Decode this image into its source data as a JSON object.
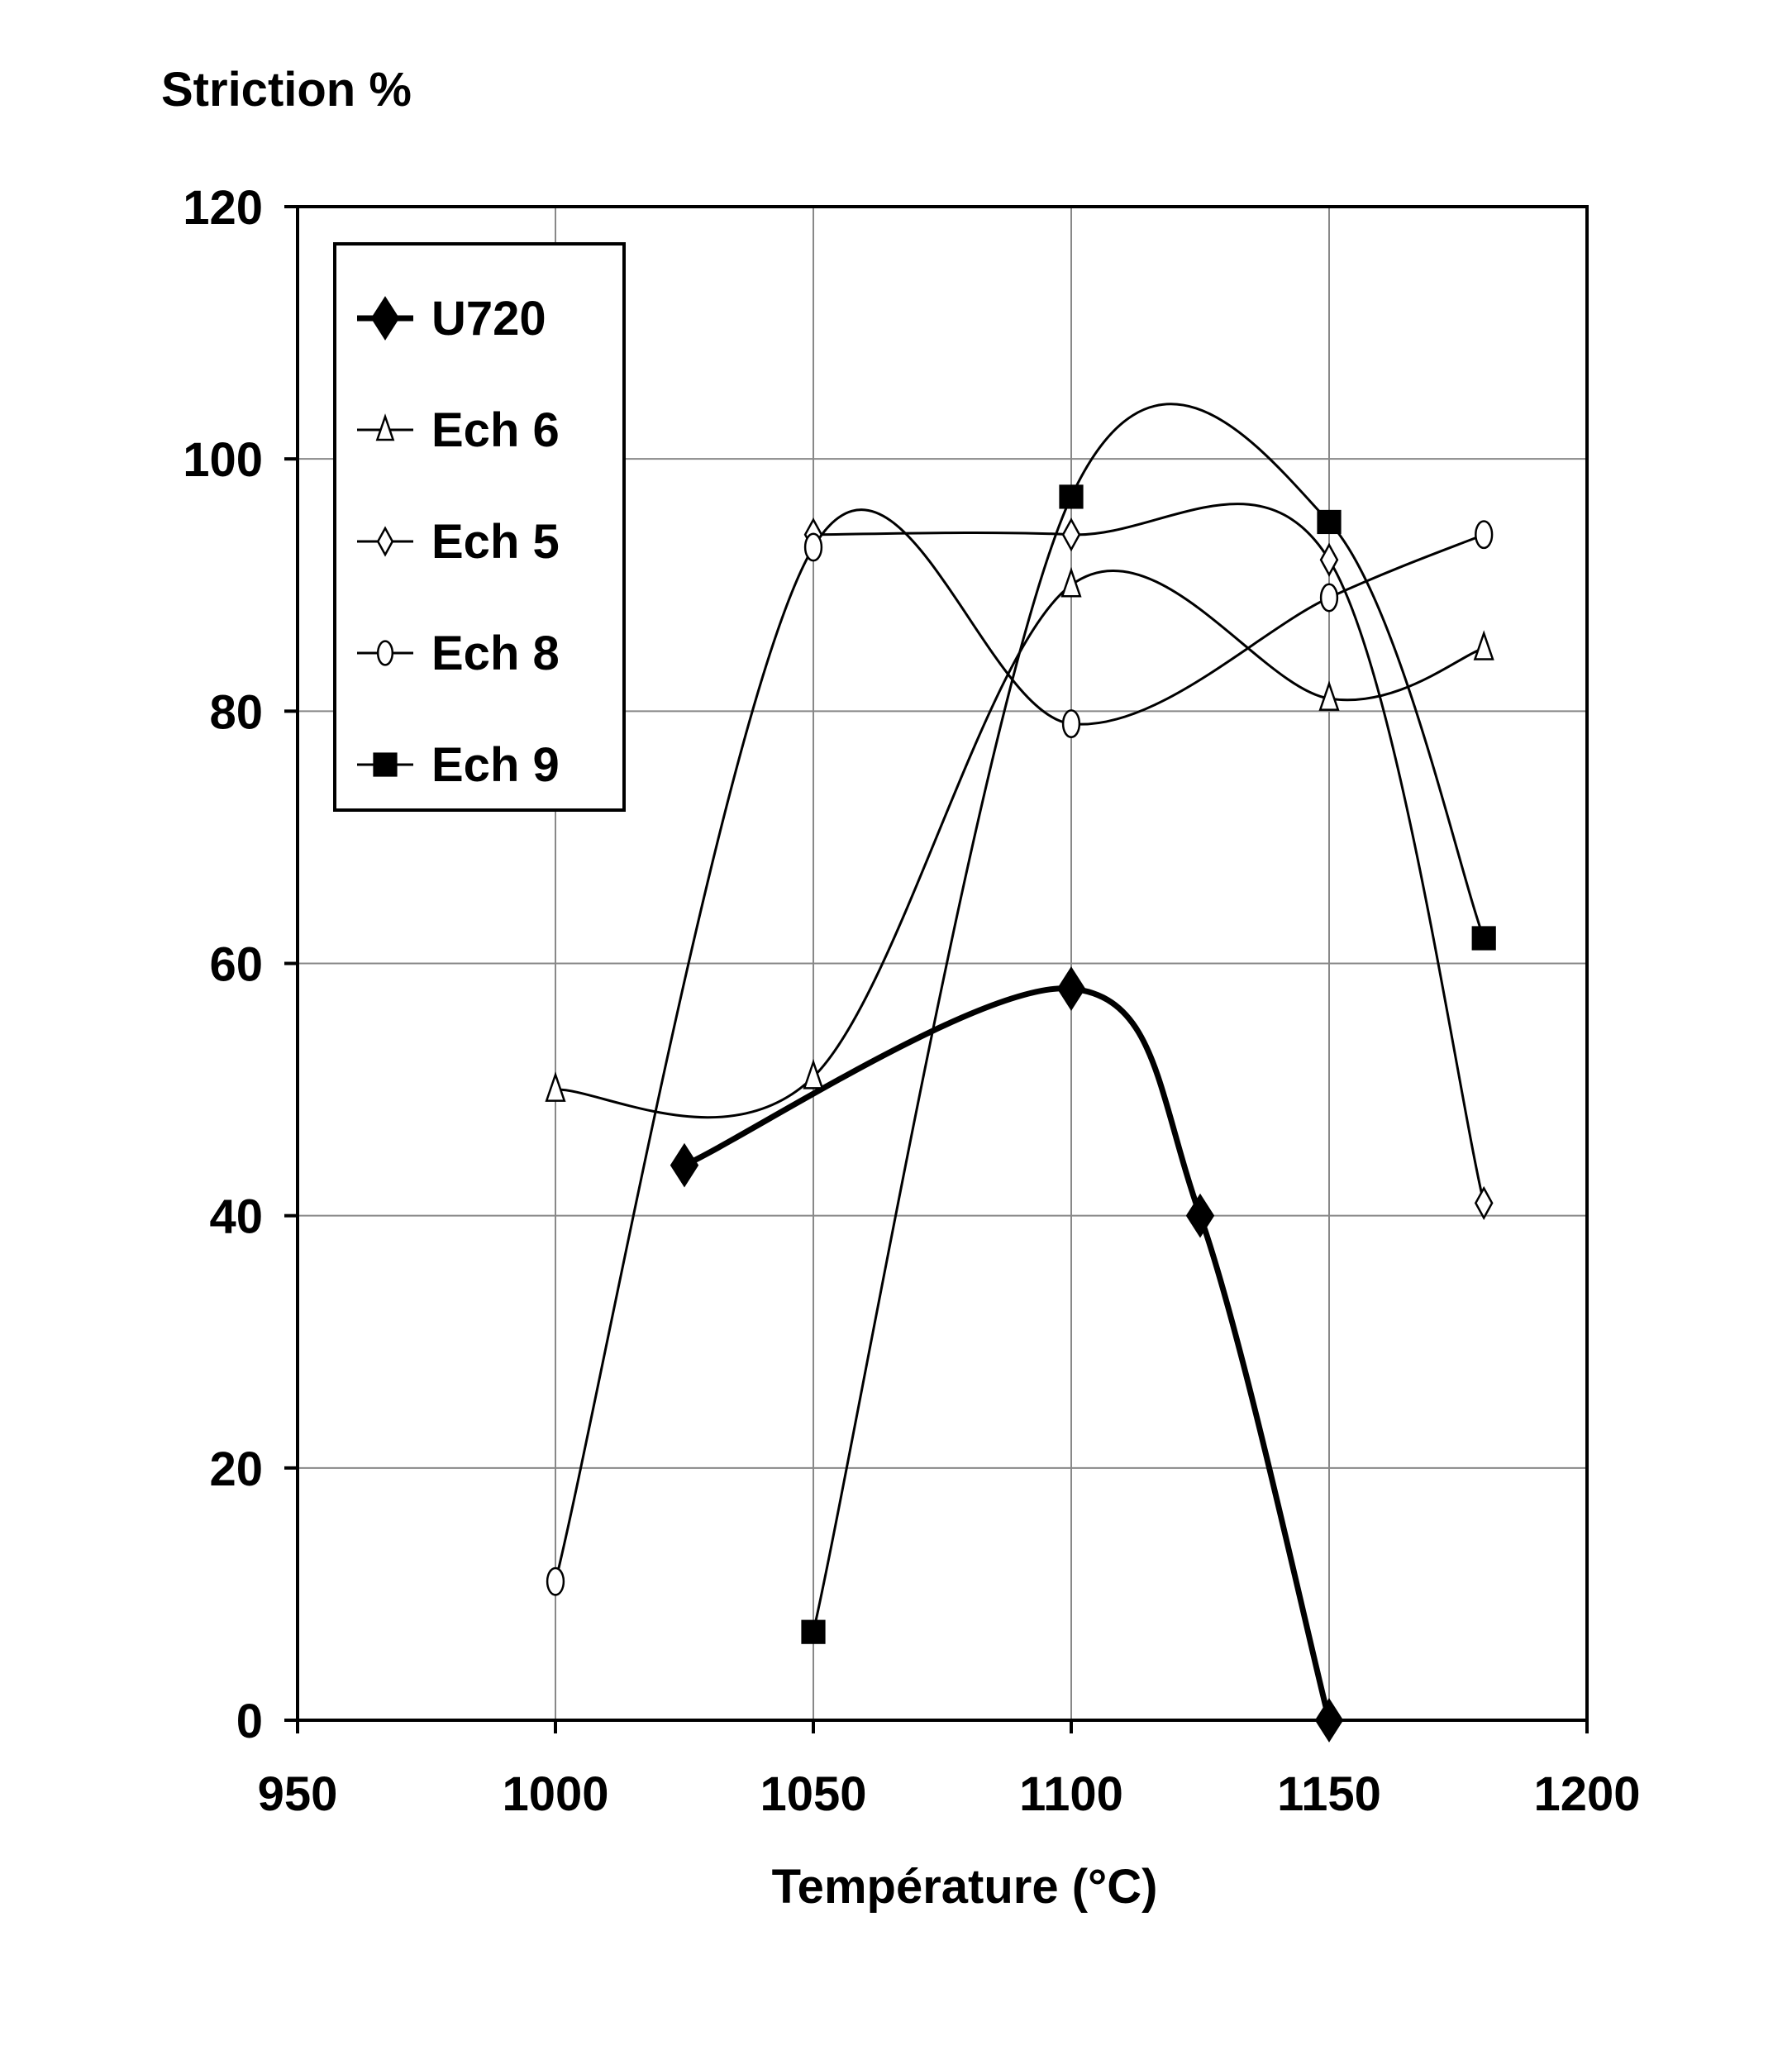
{
  "chart_data": {
    "type": "line",
    "ylabel": "Striction %",
    "xlabel": "Température (°C)",
    "xlim": [
      950,
      1200
    ],
    "ylim": [
      0,
      120
    ],
    "xticks": [
      950,
      1000,
      1050,
      1100,
      1150,
      1200
    ],
    "yticks": [
      0,
      20,
      40,
      60,
      80,
      100,
      120
    ],
    "grid": true,
    "legend_position": "top-left",
    "series": [
      {
        "name": "U720",
        "marker": "diamond-filled",
        "line": "thick",
        "x": [
          1025,
          1100,
          1125,
          1150
        ],
        "y": [
          44,
          58,
          40,
          0
        ]
      },
      {
        "name": "Ech 6",
        "marker": "triangle-open",
        "line": "thin",
        "x": [
          1000,
          1050,
          1100,
          1150,
          1180
        ],
        "y": [
          50,
          51,
          90,
          81,
          85
        ]
      },
      {
        "name": "Ech 5",
        "marker": "diamond-open",
        "line": "thin",
        "x": [
          1050,
          1100,
          1150,
          1180
        ],
        "y": [
          94,
          94,
          92,
          41
        ]
      },
      {
        "name": "Ech 8",
        "marker": "circle-open",
        "line": "thin",
        "x": [
          1000,
          1050,
          1100,
          1150,
          1180
        ],
        "y": [
          11,
          93,
          79,
          89,
          94
        ]
      },
      {
        "name": "Ech 9",
        "marker": "square-filled",
        "line": "thin",
        "x": [
          1050,
          1100,
          1150,
          1180
        ],
        "y": [
          7,
          97,
          95,
          62
        ]
      }
    ]
  }
}
